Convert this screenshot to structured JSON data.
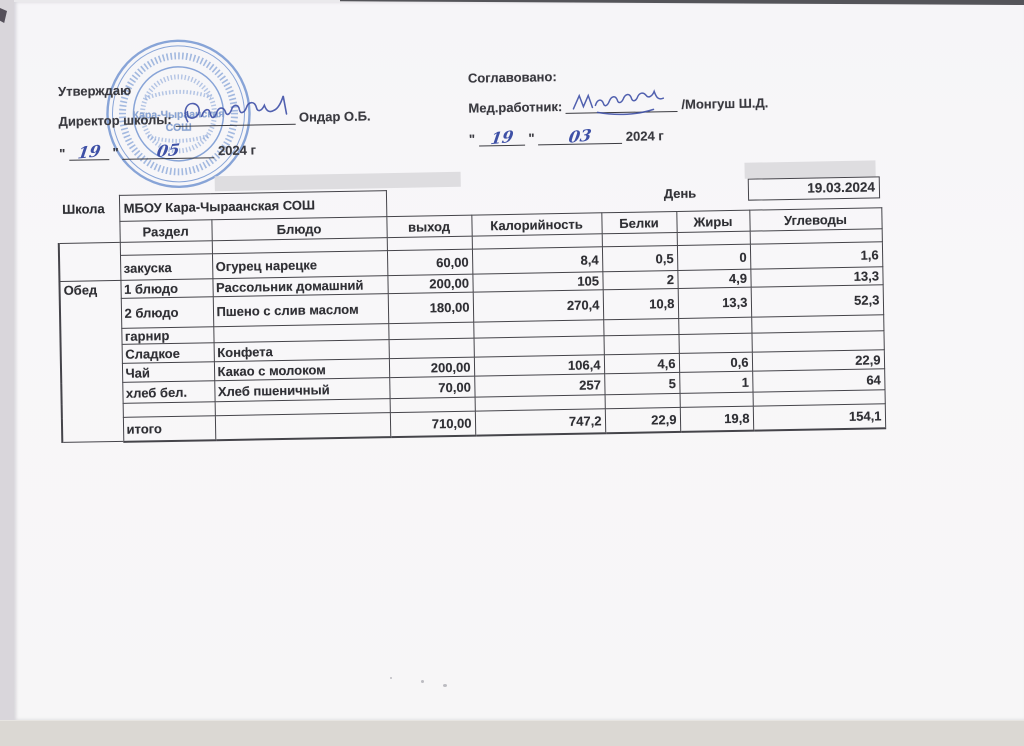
{
  "document": {
    "approve_block": {
      "title": "Утверждаю",
      "director_label": "Директор школы:",
      "director_name": "Ондар О.Б.",
      "quote": "\"",
      "date_day": "19",
      "date_month": "05",
      "date_year": "2024 г"
    },
    "agree_block": {
      "title": "Соглавовано:",
      "medic_label": "Мед.работник:",
      "medic_name": "/Монгуш Ш.Д.",
      "quote": "\"",
      "date_day": "19",
      "date_month": "03",
      "date_year": "2024 г"
    },
    "stamp": {
      "center_line1": "Кара-Чыраанская",
      "center_line2": "СОШ"
    }
  },
  "table": {
    "school_label": "Школа",
    "school_name": "МБОУ Кара-Чыраанская СОШ",
    "day_label": "День",
    "day_value": "19.03.2024",
    "columns": [
      "Раздел",
      "Блюдо",
      "выход",
      "Калорийность",
      "Белки",
      "Жиры",
      "Углеводы"
    ],
    "meal_group": "Обед",
    "rows": [
      {
        "razdel": "",
        "dish": "",
        "out": "",
        "kcal": "",
        "protein": "",
        "fat": "",
        "carbs": ""
      },
      {
        "razdel": "закуска",
        "dish": "Огурец нарецке",
        "out": "60,00",
        "kcal": "8,4",
        "protein": "0,5",
        "fat": "0",
        "carbs": "1,6"
      },
      {
        "razdel": "1 блюдо",
        "dish": "Рассольник домашний",
        "out": "200,00",
        "kcal": "105",
        "protein": "2",
        "fat": "4,9",
        "carbs": "13,3"
      },
      {
        "razdel": "2 блюдо",
        "dish": "Пшено с слив маслом",
        "out": "180,00",
        "kcal": "270,4",
        "protein": "10,8",
        "fat": "13,3",
        "carbs": "52,3"
      },
      {
        "razdel": "гарнир",
        "dish": "",
        "out": "",
        "kcal": "",
        "protein": "",
        "fat": "",
        "carbs": ""
      },
      {
        "razdel": "Сладкое",
        "dish": "Конфета",
        "out": "",
        "kcal": "",
        "protein": "",
        "fat": "",
        "carbs": ""
      },
      {
        "razdel": "Чай",
        "dish": "Какао с молоком",
        "out": "200,00",
        "kcal": "106,4",
        "protein": "4,6",
        "fat": "0,6",
        "carbs": "22,9"
      },
      {
        "razdel": "хлеб бел.",
        "dish": "Хлеб пшеничный",
        "out": "70,00",
        "kcal": "257",
        "protein": "5",
        "fat": "1",
        "carbs": "64"
      },
      {
        "razdel": "",
        "dish": "",
        "out": "",
        "kcal": "",
        "protein": "",
        "fat": "",
        "carbs": ""
      },
      {
        "razdel": "итого",
        "dish": "",
        "out": "710,00",
        "kcal": "747,2",
        "protein": "22,9",
        "fat": "19,8",
        "carbs": "154,1"
      }
    ]
  },
  "colors": {
    "ink_blue": "#3e50a6",
    "stamp_blue": "#6b90cf",
    "text": "#333338",
    "border": "#45444a"
  }
}
